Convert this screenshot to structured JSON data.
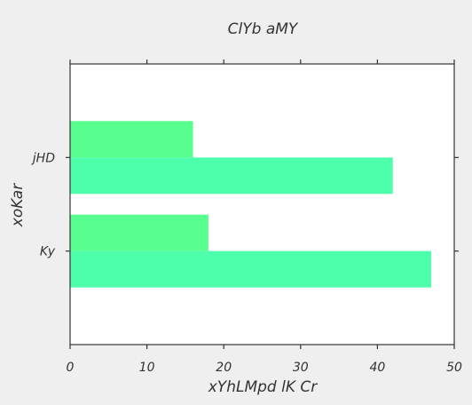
{
  "chart_data": {
    "type": "bar",
    "orientation": "horizontal",
    "title": "ClYb aMY",
    "xlabel": "xYhLMpd lK Cr",
    "ylabel": "xoKar",
    "categories": [
      "Ky",
      "jHD"
    ],
    "series": [
      {
        "values": [
          47,
          42
        ],
        "color": "#4dffab"
      },
      {
        "values": [
          18,
          16
        ],
        "color": "#58ff8e"
      }
    ],
    "xlim": [
      0,
      50
    ],
    "xticks": [
      "0",
      "10",
      "20",
      "30",
      "40",
      "50"
    ],
    "grid": false,
    "legend": "none"
  }
}
